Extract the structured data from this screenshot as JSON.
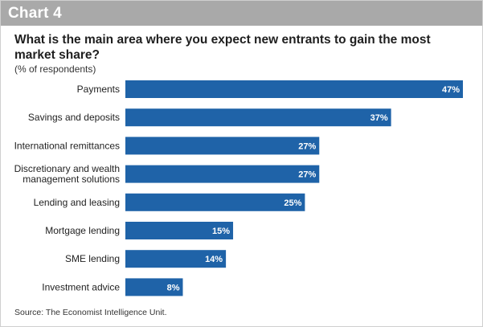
{
  "header": {
    "chart_label": "Chart 4",
    "header_color": "#a9a9a9"
  },
  "title": "What is the main area where you expect new entrants to gain the most market share?",
  "subtitle": "(% of respondents)",
  "source": "Source: The Economist Intelligence Unit.",
  "colors": {
    "bar": "#1f63a8",
    "bar_label": "#ffffff",
    "category_label": "#222222"
  },
  "chart_data": {
    "type": "bar",
    "orientation": "horizontal",
    "title": "What is the main area where you expect new entrants to gain the most market share?",
    "subtitle": "(% of respondents)",
    "categories": [
      [
        "Payments"
      ],
      [
        "Savings and deposits"
      ],
      [
        "International remittances"
      ],
      [
        "Discretionary and wealth",
        "management solutions"
      ],
      [
        "Lending and leasing"
      ],
      [
        "Mortgage lending"
      ],
      [
        "SME lending"
      ],
      [
        "Investment advice"
      ]
    ],
    "values": [
      47,
      37,
      27,
      27,
      25,
      15,
      14,
      8
    ],
    "value_labels": [
      "47%",
      "37%",
      "27%",
      "27%",
      "25%",
      "15%",
      "14%",
      "8%"
    ],
    "unit": "%",
    "xlim": [
      0,
      47
    ],
    "grid": false,
    "legend": "none"
  }
}
